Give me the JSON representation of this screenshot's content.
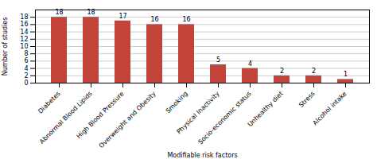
{
  "chart_data": {
    "type": "bar",
    "categories": [
      "Diabetes",
      "Abnormal Blood Lipids",
      "High Blood Pressure",
      "Overweight and Obesity",
      "Smoking",
      "Physical Inactivity",
      "Socio-economic status",
      "Unhealthy diet",
      "Stress",
      "Alcohol intake"
    ],
    "values": [
      18,
      18,
      17,
      16,
      16,
      5,
      4,
      2,
      2,
      1
    ],
    "color": "#c1433a",
    "xlabel": "Modifiable risk factors",
    "ylabel": "Number of studies",
    "ylim": [
      0,
      20
    ],
    "yticks": [
      0,
      2,
      4,
      6,
      8,
      10,
      12,
      14,
      16,
      18
    ],
    "grid": true,
    "data_labels": true
  }
}
